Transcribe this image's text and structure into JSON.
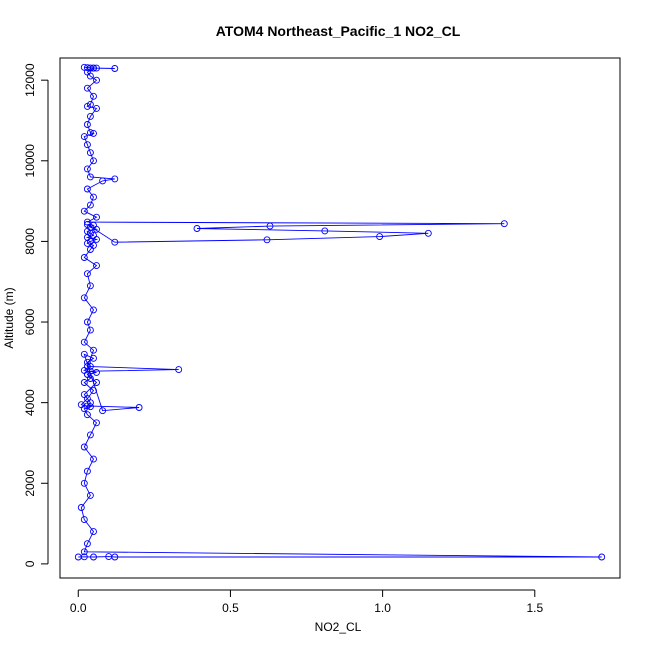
{
  "chart_data": {
    "type": "scatter",
    "mode": "lines+markers",
    "title": "ATOM4 Northeast_Pacific_1 NO2_CL",
    "xlabel": "NO2_CL",
    "ylabel": "Altitude (m)",
    "xlim": [
      -0.06,
      1.78
    ],
    "ylim": [
      -350,
      12550
    ],
    "xticks": [
      0.0,
      0.5,
      1.0,
      1.5
    ],
    "xtick_labels": [
      "0.0",
      "0.5",
      "1.0",
      "1.5"
    ],
    "yticks": [
      0,
      2000,
      4000,
      6000,
      8000,
      10000,
      12000
    ],
    "ytick_labels": [
      "0",
      "2000",
      "4000",
      "6000",
      "8000",
      "10000",
      "12000"
    ],
    "grid": false,
    "legend": "none",
    "color": "#0000ff",
    "marker": "open-circle",
    "x": [
      0.0,
      0.02,
      0.05,
      0.1,
      0.12,
      1.72,
      0.02,
      0.03,
      0.05,
      0.02,
      0.01,
      0.04,
      0.02,
      0.03,
      0.05,
      0.02,
      0.04,
      0.06,
      0.03,
      0.02,
      0.04,
      0.01,
      0.03,
      0.05,
      0.02,
      0.04,
      0.03,
      0.06,
      0.02,
      0.04,
      0.03,
      0.05,
      0.02,
      0.08,
      0.2,
      0.03,
      0.04,
      0.02,
      0.06,
      0.03,
      0.04,
      0.33,
      0.03,
      0.05,
      0.02,
      0.04,
      0.03,
      0.05,
      0.02,
      0.04,
      0.03,
      0.06,
      0.02,
      0.04,
      0.05,
      0.03,
      0.04,
      0.06,
      0.03,
      0.05,
      0.04,
      0.03,
      0.06,
      0.04,
      0.05,
      0.03,
      0.12,
      0.62,
      0.99,
      1.15,
      0.81,
      0.39,
      0.63,
      1.4,
      0.03,
      0.06,
      0.02,
      0.04,
      0.05,
      0.03,
      0.08,
      0.12,
      0.04,
      0.03,
      0.05,
      0.04,
      0.03,
      0.02,
      0.05,
      0.04,
      0.03,
      0.04,
      0.06,
      0.03,
      0.04,
      0.05,
      0.03,
      0.06,
      0.04,
      0.03,
      0.05,
      0.04,
      0.03,
      0.05,
      0.02,
      0.06,
      0.12,
      0.04
    ],
    "y": [
      170,
      175,
      170,
      180,
      170,
      170,
      300,
      500,
      800,
      1100,
      1400,
      1700,
      2000,
      2300,
      2600,
      2900,
      3200,
      3500,
      3700,
      3850,
      3900,
      3950,
      4100,
      4300,
      4500,
      4600,
      4700,
      4750,
      4800,
      4900,
      5000,
      5100,
      5200,
      3800,
      3880,
      3920,
      4000,
      4200,
      4500,
      4700,
      4780,
      4820,
      4900,
      5300,
      5500,
      5800,
      6000,
      6300,
      6600,
      6900,
      7200,
      7400,
      7600,
      7800,
      7900,
      7950,
      8000,
      8050,
      8100,
      8150,
      8200,
      8250,
      8300,
      8350,
      8400,
      8420,
      7980,
      8040,
      8120,
      8200,
      8260,
      8320,
      8380,
      8440,
      8480,
      8600,
      8750,
      8900,
      9100,
      9300,
      9500,
      9550,
      9600,
      9800,
      10000,
      10200,
      10400,
      10600,
      10680,
      10700,
      10900,
      11100,
      11300,
      11350,
      11400,
      11600,
      11800,
      12000,
      12100,
      12200,
      12300,
      12300,
      12310,
      12300,
      12320,
      12300,
      12290,
      12300
    ]
  }
}
